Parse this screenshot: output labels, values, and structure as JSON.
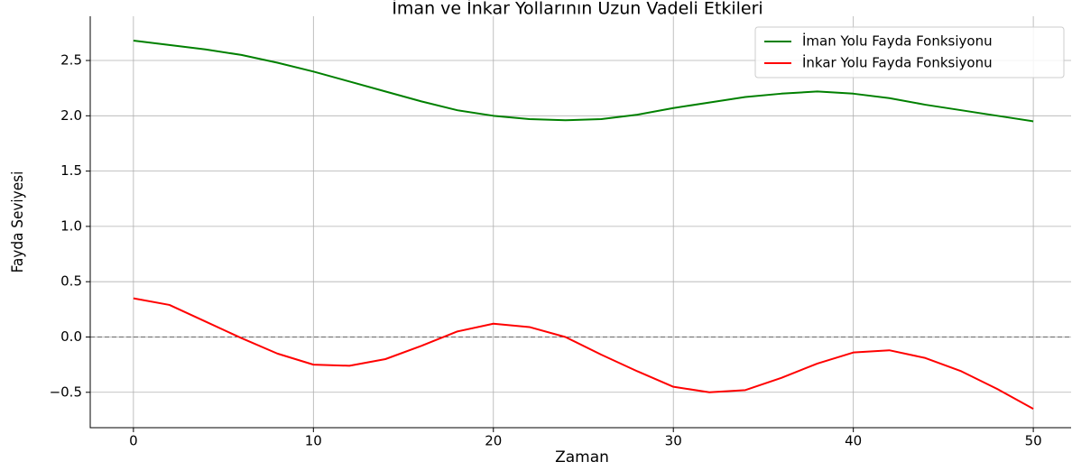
{
  "chart_data": {
    "type": "line",
    "title": "İman ve İnkar Yollarının Uzun Vadeli Etkileri",
    "x_label": "Zaman",
    "y_label": "Fayda Seviyesi",
    "x": [
      0,
      2,
      4,
      6,
      8,
      10,
      12,
      14,
      16,
      18,
      20,
      22,
      24,
      26,
      28,
      30,
      32,
      34,
      36,
      38,
      40,
      42,
      44,
      46,
      48,
      50
    ],
    "series": [
      {
        "name": "İman Yolu Fayda Fonksiyonu",
        "color": "#008000",
        "values": [
          2.68,
          2.64,
          2.6,
          2.55,
          2.48,
          2.4,
          2.31,
          2.22,
          2.13,
          2.05,
          2.0,
          1.97,
          1.96,
          1.97,
          2.01,
          2.07,
          2.12,
          2.17,
          2.2,
          2.22,
          2.2,
          2.16,
          2.1,
          2.05,
          2.0,
          1.95
        ]
      },
      {
        "name": "İnkar Yolu Fayda Fonksiyonu",
        "color": "#ff0000",
        "values": [
          0.35,
          0.29,
          0.14,
          -0.01,
          -0.15,
          -0.25,
          -0.26,
          -0.2,
          -0.08,
          0.05,
          0.12,
          0.09,
          0.0,
          -0.16,
          -0.31,
          -0.45,
          -0.5,
          -0.48,
          -0.37,
          -0.24,
          -0.14,
          -0.12,
          -0.19,
          -0.31,
          -0.47,
          -0.65
        ]
      }
    ],
    "hline": 0,
    "xlim": [
      -2.4,
      52.1
    ],
    "ylim": [
      -0.82,
      2.9
    ],
    "xticks": [
      0,
      10,
      20,
      30,
      40,
      50
    ],
    "yticks": [
      {
        "value": -0.5,
        "label": "−0.5"
      },
      {
        "value": 0,
        "label": "0.0"
      },
      {
        "value": 0.5,
        "label": "0.5"
      },
      {
        "value": 1,
        "label": "1.0"
      },
      {
        "value": 1.5,
        "label": "1.5"
      },
      {
        "value": 2,
        "label": "2.0"
      },
      {
        "value": 2.5,
        "label": "2.5"
      }
    ],
    "grid": true,
    "legend": "upper right"
  }
}
